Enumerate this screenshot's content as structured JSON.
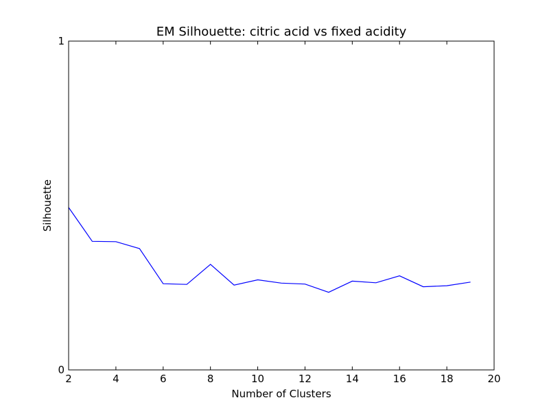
{
  "chart_data": {
    "type": "line",
    "title": "EM Silhouette: citric acid vs fixed acidity",
    "xlabel": "Number of Clusters",
    "ylabel": "Silhouette",
    "xlim": [
      2,
      20
    ],
    "ylim": [
      0,
      1
    ],
    "xticks": [
      2,
      4,
      6,
      8,
      10,
      12,
      14,
      16,
      18,
      20
    ],
    "yticks": [
      0,
      1
    ],
    "grid": false,
    "series": [
      {
        "color": "#0000ff",
        "x": [
          2,
          3,
          4,
          5,
          6,
          7,
          8,
          9,
          10,
          11,
          12,
          13,
          14,
          15,
          16,
          17,
          18,
          19
        ],
        "y": [
          0.494,
          0.391,
          0.39,
          0.369,
          0.262,
          0.26,
          0.321,
          0.258,
          0.274,
          0.264,
          0.261,
          0.236,
          0.27,
          0.265,
          0.286,
          0.253,
          0.256,
          0.267
        ]
      }
    ]
  }
}
